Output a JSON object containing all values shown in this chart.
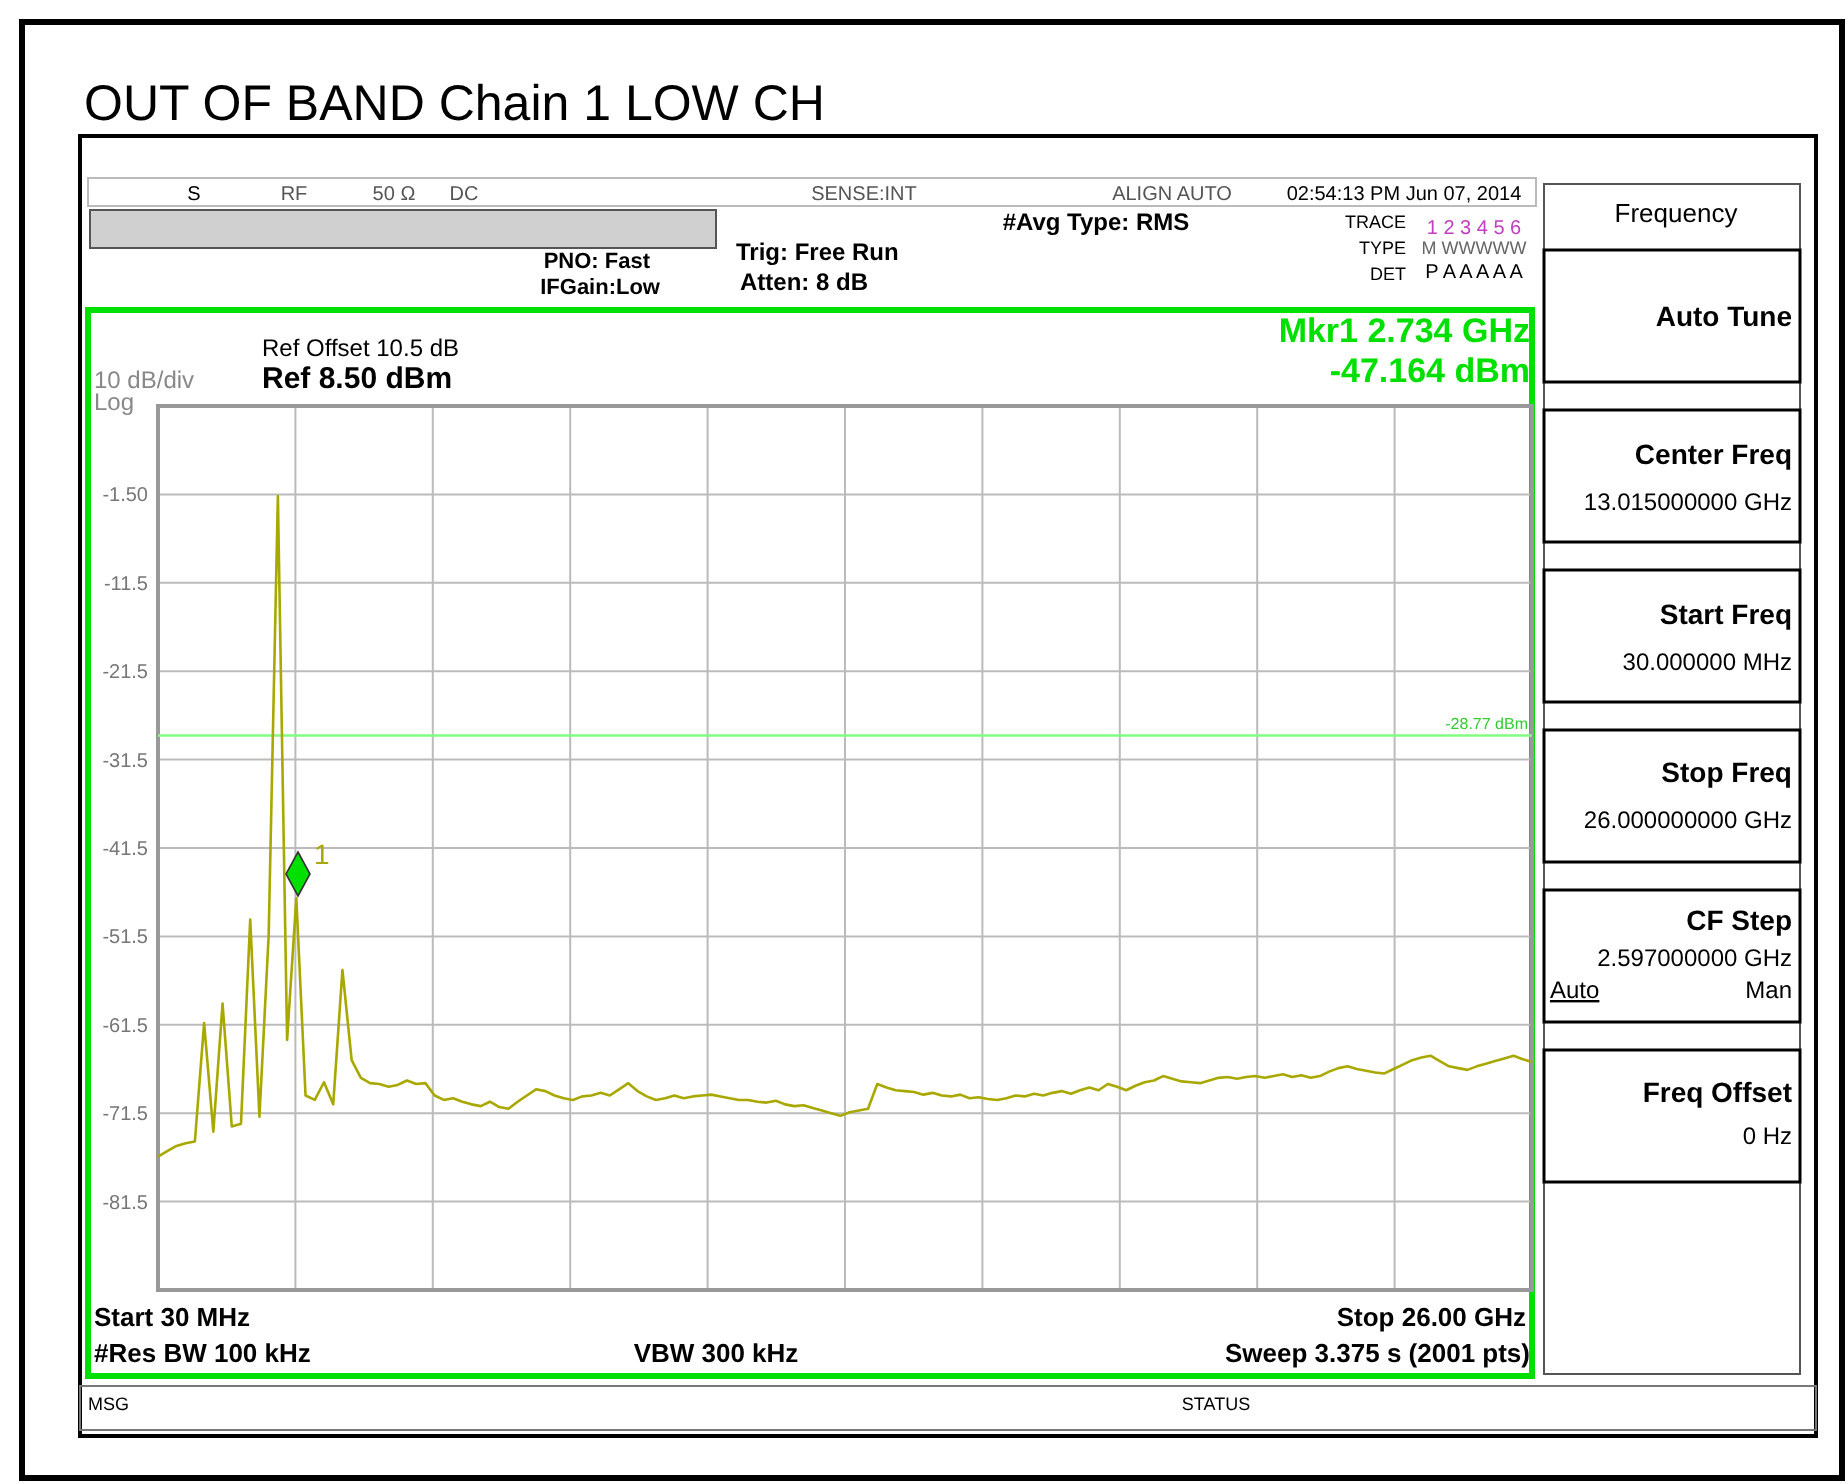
{
  "chart_data": {
    "type": "line",
    "title": "OUT OF BAND Chain 1 LOW CH",
    "ylabel": "10 dB/div",
    "categories": [
      null,
      null,
      null,
      null,
      null,
      null,
      null,
      null,
      null,
      null,
      null,
      null,
      null,
      null,
      null,
      null,
      null,
      null,
      null,
      null,
      null,
      null,
      null,
      null,
      null,
      null,
      null,
      null,
      null,
      null,
      null,
      null,
      null,
      null,
      null,
      null,
      null,
      null,
      null,
      null,
      null,
      null,
      null,
      null,
      null,
      null,
      null,
      null,
      null,
      null,
      null,
      null,
      null,
      null,
      null,
      null,
      null,
      null,
      null,
      null,
      null,
      null,
      null,
      null,
      null,
      null,
      null,
      null,
      null,
      null,
      null,
      null,
      null,
      null,
      null,
      null,
      null,
      null,
      null,
      null,
      null,
      null,
      null,
      null,
      null,
      null,
      null,
      null,
      null,
      null,
      null,
      null,
      null,
      null,
      null,
      null,
      null,
      null,
      null,
      null,
      null,
      null,
      null,
      null,
      null,
      null,
      null,
      null,
      null,
      null,
      null,
      null,
      null,
      null,
      null,
      null,
      null,
      null,
      null,
      null,
      null,
      null,
      null,
      null,
      null,
      null,
      null,
      null,
      null,
      null,
      null,
      null,
      null,
      null,
      null,
      null,
      null,
      null,
      null,
      null,
      null,
      null,
      null,
      null,
      null,
      null,
      null,
      null,
      null,
      null
    ],
    "ylim": [
      -91.5,
      8.5
    ],
    "yticks": [
      {
        "value": -1.5,
        "label": "-1.50"
      },
      -11.5,
      -21.5,
      -31.5,
      -41.5,
      -51.5,
      -61.5,
      -71.5,
      -81.5
    ],
    "tick_labels": "y",
    "grid": true,
    "series": [
      {
        "color": "#a8a800",
        "values": [
          -76.4,
          -75.8,
          -75.2,
          -74.9,
          -74.7,
          -61.3,
          -73.6,
          -59.1,
          -73,
          -72.7,
          -49.6,
          -71.9,
          -51.4,
          -1.7,
          -63.2,
          -47.2,
          -69.5,
          -70,
          -68,
          -70.5,
          -55.3,
          -65.5,
          -67.5,
          -68.1,
          -68.2,
          -68.5,
          -68.3,
          -67.8,
          -68.2,
          -68.1,
          -69.5,
          -70,
          -69.8,
          -70.2,
          -70.5,
          -70.7,
          -70.2,
          -70.8,
          -71,
          -70.2,
          -69.5,
          -68.8,
          -69,
          -69.5,
          -69.8,
          -70,
          -69.6,
          -69.5,
          -69.2,
          -69.5,
          -68.8,
          -68.1,
          -69,
          -69.6,
          -70,
          -69.8,
          -69.5,
          -69.8,
          -69.6,
          -69.5,
          -69.4,
          -69.6,
          -69.8,
          -70,
          -70,
          -70.2,
          -70.3,
          -70.1,
          -70.5,
          -70.7,
          -70.6,
          -70.9,
          -71.2,
          -71.5,
          -71.8,
          -71.4,
          -71.2,
          -71,
          -68.2,
          -68.6,
          -68.9,
          -69,
          -69.1,
          -69.4,
          -69.2,
          -69.5,
          -69.6,
          -69.4,
          -69.8,
          -69.7,
          -69.9,
          -70,
          -69.8,
          -69.5,
          -69.6,
          -69.3,
          -69.5,
          -69.2,
          -69,
          -69.3,
          -68.9,
          -68.6,
          -68.9,
          -68.2,
          -68.5,
          -68.9,
          -68.4,
          -68,
          -67.8,
          -67.3,
          -67.6,
          -67.9,
          -68,
          -68.1,
          -67.8,
          -67.5,
          -67.4,
          -67.6,
          -67.4,
          -67.3,
          -67.5,
          -67.3,
          -67.1,
          -67.4,
          -67.2,
          -67.5,
          -67.3,
          -66.8,
          -66.4,
          -66.2,
          -66.5,
          -66.7,
          -66.9,
          -67,
          -66.5,
          -66,
          -65.5,
          -65.2,
          -65,
          -65.6,
          -66.2,
          -66.4,
          -66.6,
          -66.2,
          -65.9,
          -65.6,
          -65.3,
          -65,
          -65.4,
          -65.7
        ]
      }
    ],
    "marker": "none",
    "line_style": "solid",
    "ref_lines": [
      {
        "axis": "y",
        "value": -28.77,
        "label": "-28.77 dBm",
        "color": "#80ff80"
      }
    ],
    "annotations": [
      "1",
      "S",
      "RF",
      "50 Ω",
      "DC",
      "SENSE:INT",
      "ALIGN AUTO",
      "02:54:13 PM Jun 07, 2014",
      "#Avg Type: RMS",
      "TRACE",
      "1 2 3 4 5 6",
      "TYPE",
      "M WWWWW",
      "DET",
      "P A A A A A",
      "PNO: Fast",
      "IFGain:Low",
      "Trig: Free Run",
      "Atten: 8 dB",
      "Ref Offset 10.5 dB",
      "Ref 8.50 dBm",
      "Mkr1 2.734 GHz",
      "-47.164 dBm",
      "Log",
      "Start 30 MHz",
      "Stop 26.00 GHz",
      "#Res BW 100 kHz",
      "VBW 300 kHz",
      "Sweep  3.375 s (2001 pts)",
      "MSG",
      "STATUS",
      "Frequency",
      "Auto Tune",
      "Center Freq",
      "13.015000000 GHz",
      "Start Freq",
      "30.000000 MHz",
      "Stop Freq",
      "26.000000000 GHz",
      "CF Step",
      "2.597000000 GHz",
      "Auto",
      "Man",
      "Freq Offset",
      "0 Hz"
    ]
  }
}
